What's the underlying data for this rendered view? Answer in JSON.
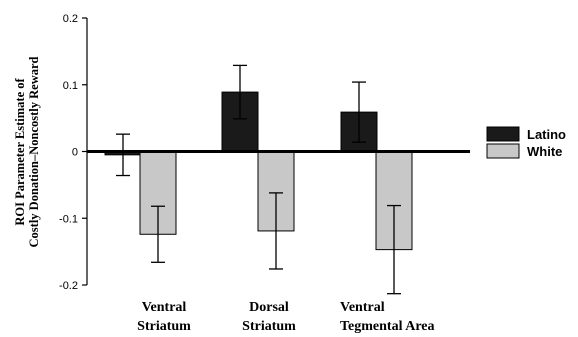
{
  "chart_data": {
    "type": "bar",
    "ylabel": [
      "ROI Parameter Estimate of",
      "Costly Donation–Noncostly Reward"
    ],
    "categories": [
      [
        "Ventral",
        "Striatum"
      ],
      [
        "Dorsal",
        "Striatum"
      ],
      [
        "Ventral",
        "Tegmental Area"
      ]
    ],
    "ylim": [
      -0.2,
      0.2
    ],
    "yticks": [
      {
        "value": 0.2,
        "label": "0.2"
      },
      {
        "value": 0.1,
        "label": "0.1"
      },
      {
        "value": 0,
        "label": "0"
      },
      {
        "value": -0.1,
        "label": "-0.1"
      },
      {
        "value": -0.2,
        "label": "-0.2"
      }
    ],
    "grid": false,
    "legend_position": "right",
    "series": [
      {
        "name": "Latino",
        "color": "#1a1a1a",
        "values": [
          -0.005,
          0.089,
          0.059
        ],
        "error": [
          0.031,
          0.04,
          0.045
        ]
      },
      {
        "name": "White",
        "color": "#c8c8c8",
        "values": [
          -0.124,
          -0.119,
          -0.147
        ],
        "error": [
          0.042,
          0.057,
          0.066
        ]
      }
    ]
  }
}
